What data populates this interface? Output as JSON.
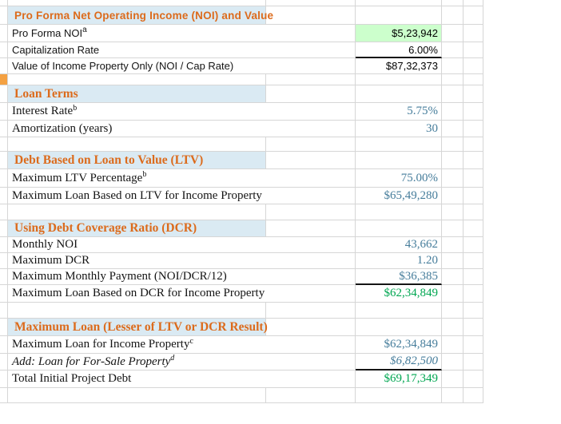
{
  "sheet": {
    "rows": [
      {
        "type": "header",
        "label": "Pro Forma Net Operating Income (NOI) and Value"
      },
      {
        "type": "data",
        "label": "Pro Forma NOI",
        "sup": "a",
        "value": "$5,23,942"
      },
      {
        "type": "data",
        "label": "Capitalization Rate",
        "value": "6.00%"
      },
      {
        "type": "data",
        "label": "Value of Income Property Only (NOI / Cap Rate)",
        "value": "$87,32,373"
      },
      {
        "type": "spacer"
      },
      {
        "type": "header",
        "label": "Loan Terms"
      },
      {
        "type": "data",
        "label": "Interest Rate",
        "sup": "b",
        "value": "5.75%"
      },
      {
        "type": "data",
        "label": "Amortization (years)",
        "value": "30"
      },
      {
        "type": "spacer"
      },
      {
        "type": "header",
        "label": "Debt Based on Loan to Value (LTV)"
      },
      {
        "type": "data",
        "label": "Maximum LTV Percentage",
        "sup": "b",
        "value": "75.00%"
      },
      {
        "type": "data",
        "label": "Maximum Loan Based on LTV for Income Property",
        "value": "$65,49,280"
      },
      {
        "type": "spacer"
      },
      {
        "type": "header",
        "label": "Using Debt Coverage Ratio (DCR)"
      },
      {
        "type": "data",
        "label": "Monthly NOI",
        "value": "43,662"
      },
      {
        "type": "data",
        "label": "Maximum DCR",
        "value": "1.20"
      },
      {
        "type": "data",
        "label": "Maximum Monthly Payment (NOI/DCR/12)",
        "value": "$36,385"
      },
      {
        "type": "data",
        "label": "Maximum Loan Based on DCR for Income Property",
        "value": "$62,34,849"
      },
      {
        "type": "spacer"
      },
      {
        "type": "header",
        "label": "Maximum Loan (Lesser of LTV or DCR Result)"
      },
      {
        "type": "data",
        "label": "Maximum Loan for Income Property",
        "sup": "c",
        "value": "$62,34,849"
      },
      {
        "type": "data",
        "label": "Add: Loan for For-Sale Property",
        "sup": "d",
        "value": "$6,82,500"
      },
      {
        "type": "data",
        "label": "Total Initial Project Debt",
        "value": "$69,17,349"
      },
      {
        "type": "spacer"
      }
    ]
  },
  "colors": {
    "section_header_text": "#dc6b1c",
    "section_header_band": "#daeaf3",
    "input_highlight_fill": "#ccffcc",
    "calculated_value_blue": "#467d9b",
    "result_value_green": "#00a651",
    "flag_cell_orange": "#f4a142",
    "gridline": "#d6d6d6"
  }
}
